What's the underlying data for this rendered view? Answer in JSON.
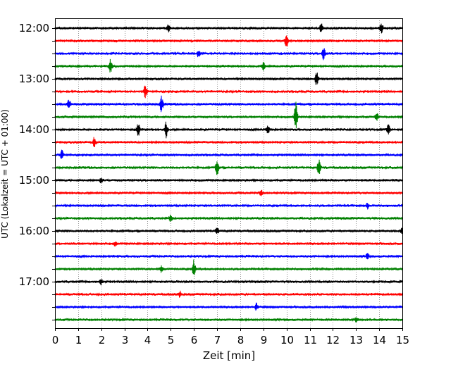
{
  "chart_data": {
    "type": "line",
    "title": "",
    "xlabel": "Zeit  [min]",
    "ylabel": "UTC (Lokalzeit = UTC + 01:00)",
    "xlim": [
      0,
      15
    ],
    "x_ticks": [
      "0",
      "1",
      "2",
      "3",
      "4",
      "5",
      "6",
      "7",
      "8",
      "9",
      "10",
      "11",
      "12",
      "13",
      "14",
      "15"
    ],
    "y_tick_labels": [
      "12:00",
      "13:00",
      "14:00",
      "15:00",
      "16:00",
      "17:00"
    ],
    "grid_x": true,
    "trace_interval_min": 15,
    "trace_colors": [
      "#000000",
      "#ff0000",
      "#0000ff",
      "#008000"
    ],
    "traces": [
      {
        "start": "12:00",
        "color": "#000000",
        "events": [
          [
            4.9,
            0.6
          ],
          [
            11.5,
            0.6
          ],
          [
            14.1,
            0.7
          ]
        ]
      },
      {
        "start": "12:15",
        "color": "#ff0000",
        "events": [
          [
            10.0,
            0.9
          ]
        ]
      },
      {
        "start": "12:30",
        "color": "#0000ff",
        "events": [
          [
            6.2,
            0.5
          ],
          [
            11.6,
            0.9
          ]
        ]
      },
      {
        "start": "12:45",
        "color": "#008000",
        "events": [
          [
            2.4,
            1.0
          ],
          [
            9.0,
            0.5
          ]
        ]
      },
      {
        "start": "13:00",
        "color": "#000000",
        "events": [
          [
            11.3,
            1.0
          ]
        ]
      },
      {
        "start": "13:15",
        "color": "#ff0000",
        "events": [
          [
            3.9,
            0.9
          ]
        ]
      },
      {
        "start": "13:30",
        "color": "#0000ff",
        "events": [
          [
            0.6,
            0.6
          ],
          [
            4.6,
            1.2
          ]
        ]
      },
      {
        "start": "13:45",
        "color": "#008000",
        "events": [
          [
            10.4,
            2.2
          ],
          [
            13.9,
            0.6
          ]
        ]
      },
      {
        "start": "14:00",
        "color": "#000000",
        "events": [
          [
            3.6,
            1.0
          ],
          [
            4.8,
            1.1
          ],
          [
            9.2,
            0.6
          ],
          [
            14.4,
            0.7
          ]
        ]
      },
      {
        "start": "14:15",
        "color": "#ff0000",
        "events": [
          [
            1.7,
            0.7
          ]
        ]
      },
      {
        "start": "14:30",
        "color": "#0000ff",
        "events": [
          [
            0.3,
            0.6
          ]
        ]
      },
      {
        "start": "14:45",
        "color": "#008000",
        "events": [
          [
            7.0,
            1.0
          ],
          [
            11.4,
            1.1
          ]
        ]
      },
      {
        "start": "15:00",
        "color": "#000000",
        "events": [
          [
            2.0,
            0.4
          ]
        ]
      },
      {
        "start": "15:15",
        "color": "#ff0000",
        "events": [
          [
            8.9,
            0.4
          ]
        ]
      },
      {
        "start": "15:30",
        "color": "#0000ff",
        "events": [
          [
            13.5,
            0.4
          ]
        ]
      },
      {
        "start": "15:45",
        "color": "#008000",
        "events": [
          [
            5.0,
            0.5
          ]
        ]
      },
      {
        "start": "16:00",
        "color": "#000000",
        "events": [
          [
            7.0,
            0.5
          ],
          [
            15.0,
            0.6
          ]
        ]
      },
      {
        "start": "16:15",
        "color": "#ff0000",
        "events": [
          [
            2.6,
            0.3
          ]
        ]
      },
      {
        "start": "16:30",
        "color": "#0000ff",
        "events": [
          [
            13.5,
            0.4
          ]
        ]
      },
      {
        "start": "16:45",
        "color": "#008000",
        "events": [
          [
            6.0,
            1.3
          ],
          [
            4.6,
            0.5
          ]
        ]
      },
      {
        "start": "17:00",
        "color": "#000000",
        "events": [
          [
            2.0,
            0.4
          ]
        ]
      },
      {
        "start": "17:15",
        "color": "#ff0000",
        "events": [
          [
            5.4,
            0.4
          ]
        ]
      },
      {
        "start": "17:30",
        "color": "#0000ff",
        "events": [
          [
            8.7,
            0.5
          ]
        ]
      },
      {
        "start": "17:45",
        "color": "#008000",
        "events": [
          [
            13.0,
            0.3
          ]
        ]
      }
    ]
  }
}
